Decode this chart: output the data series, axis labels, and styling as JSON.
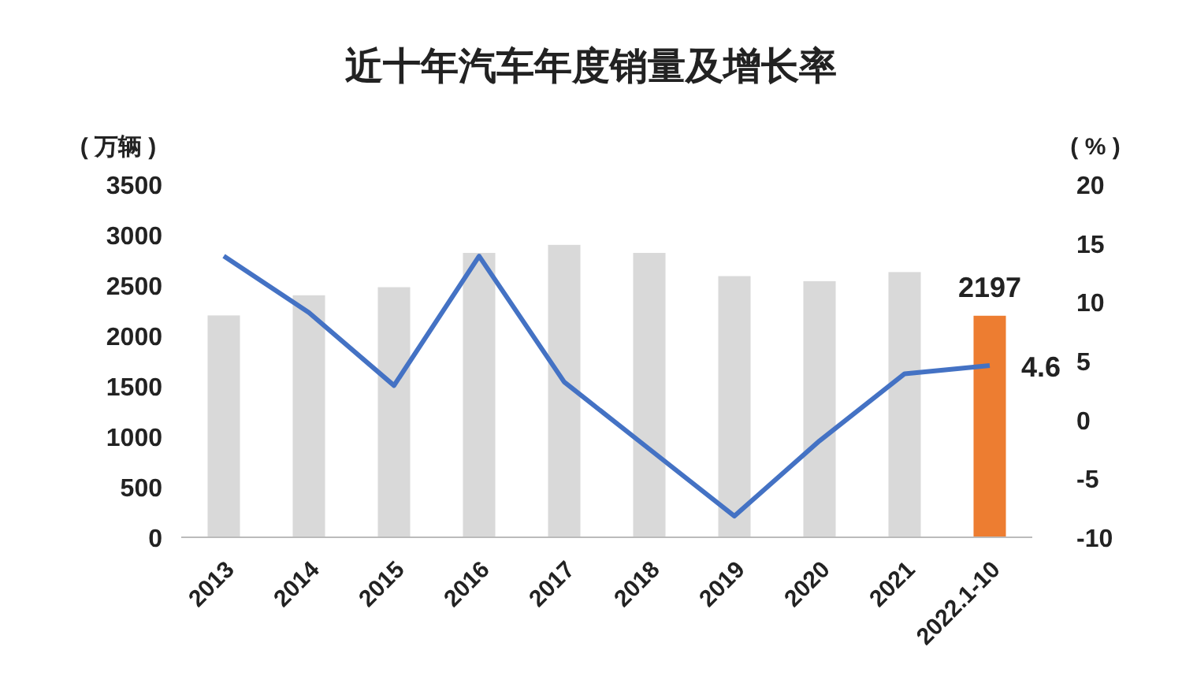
{
  "chart_data": {
    "type": "bar",
    "title": "近十年汽车年度销量及增长率",
    "ylabel": "( 万辆 )",
    "y2label": "( % )",
    "categories": [
      "2013",
      "2014",
      "2015",
      "2016",
      "2017",
      "2018",
      "2019",
      "2020",
      "2021",
      "2022.1-10"
    ],
    "series": [
      {
        "colors": [
          "#d9d9d9",
          "#d9d9d9",
          "#d9d9d9",
          "#d9d9d9",
          "#d9d9d9",
          "#d9d9d9",
          "#d9d9d9",
          "#d9d9d9",
          "#d9d9d9",
          "#ed7d31"
        ],
        "values": [
          2200,
          2400,
          2480,
          2820,
          2900,
          2820,
          2590,
          2540,
          2630,
          2197
        ],
        "value_labels": [
          null,
          null,
          null,
          null,
          null,
          null,
          null,
          null,
          null,
          "2197"
        ]
      },
      {
        "type": "line",
        "axis": "y2",
        "color": "#4472c4",
        "values": [
          13.9,
          9.1,
          2.9,
          13.9,
          3.2,
          -2.5,
          -8.2,
          -1.8,
          3.9,
          4.6
        ],
        "value_labels": [
          null,
          null,
          null,
          null,
          null,
          null,
          null,
          null,
          null,
          "4.6"
        ]
      }
    ],
    "ylim": [
      0,
      3500
    ],
    "yticks": [
      0,
      500,
      1000,
      1500,
      2000,
      2500,
      3000,
      3500
    ],
    "y2lim": [
      -10,
      20
    ],
    "y2ticks": [
      -10,
      -5,
      0,
      5,
      10,
      15,
      20
    ],
    "grid": false,
    "marker": "none"
  }
}
